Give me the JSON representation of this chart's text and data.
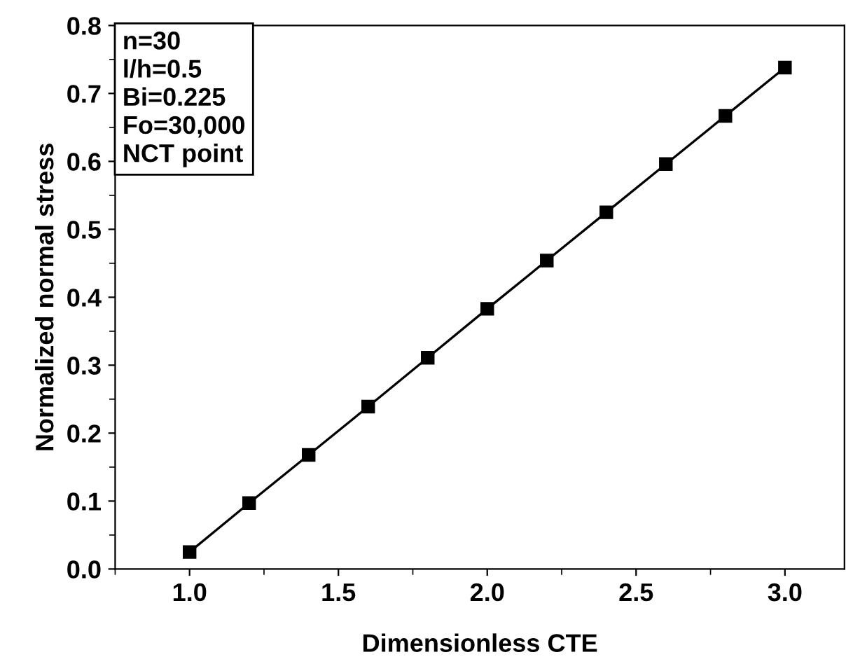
{
  "chart_data": {
    "type": "line",
    "xlabel": "Dimensionless CTE",
    "ylabel": "Normalized normal stress",
    "annotations": [
      "n=30",
      "l/h=0.5",
      "Bi=0.225",
      "Fo=30,000",
      "NCT point"
    ],
    "x": [
      1.0,
      1.2,
      1.4,
      1.6,
      1.8,
      2.0,
      2.2,
      2.4,
      2.6,
      2.8,
      3.0
    ],
    "series": [
      {
        "color": "#000000",
        "values": [
          0.025,
          0.097,
          0.168,
          0.239,
          0.311,
          0.383,
          0.454,
          0.525,
          0.596,
          0.667,
          0.738
        ]
      }
    ],
    "marker": "square",
    "line_style": "solid",
    "grid": false,
    "xlim": [
      0.75,
      3.2
    ],
    "xticks": [
      {
        "value": 1.0,
        "label": "1.0"
      },
      {
        "value": 1.5,
        "label": "1.5"
      },
      {
        "value": 2.0,
        "label": "2.0"
      },
      {
        "value": 2.5,
        "label": "2.5"
      },
      {
        "value": 3.0,
        "label": "3.0"
      }
    ],
    "ylim": [
      0.0,
      0.8
    ],
    "yticks": [
      {
        "value": 0.0,
        "label": "0.0"
      },
      0.1,
      0.2,
      0.3,
      0.4,
      0.5,
      0.6,
      0.7,
      0.8
    ]
  }
}
